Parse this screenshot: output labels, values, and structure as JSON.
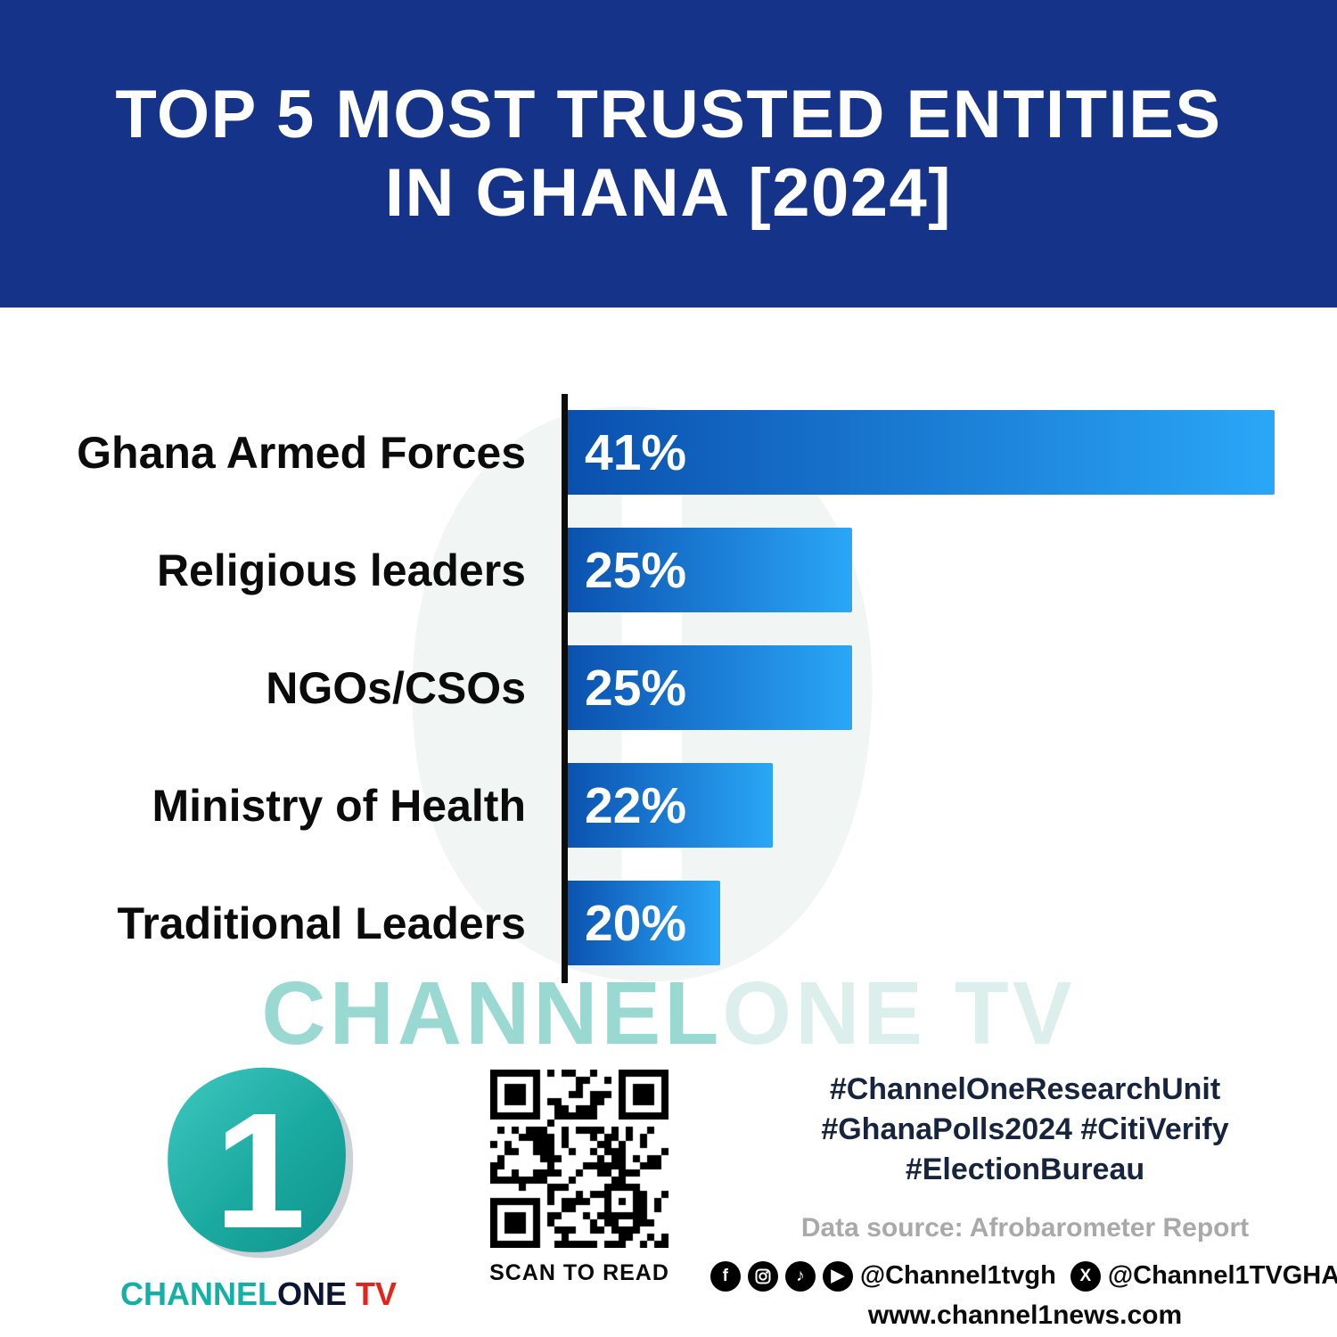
{
  "header": {
    "title_line1": "TOP 5 MOST TRUSTED ENTITIES",
    "title_line2": "IN GHANA [2024]"
  },
  "chart_data": {
    "type": "bar",
    "orientation": "horizontal",
    "title": "Top 5 most trusted entities in Ghana [2024]",
    "categories": [
      "Ghana Armed Forces",
      "Religious leaders",
      "NGOs/CSOs",
      "Ministry of Health",
      "Traditional Leaders"
    ],
    "values": [
      41,
      25,
      25,
      22,
      20
    ],
    "value_labels": [
      "41%",
      "25%",
      "25%",
      "22%",
      "20%"
    ],
    "xlabel": "",
    "ylabel": "",
    "xlim": [
      14,
      41
    ],
    "grid": false,
    "legend": false,
    "bar_color_start": "#0a4fae",
    "bar_color_end": "#2aa7f8"
  },
  "watermark": {
    "part1": "CHANNEL",
    "part2": "ONE TV"
  },
  "footer": {
    "logo": {
      "wordmark_channel": "CHANNEL",
      "wordmark_one": "ONE",
      "wordmark_tv": " TV",
      "logo_number": "1"
    },
    "qr_caption": "SCAN TO READ",
    "hashtags_line1": "#ChannelOneResearchUnit",
    "hashtags_line2": "#GhanaPolls2024 #CitiVerify",
    "hashtags_line3": "#ElectionBureau",
    "data_source": "Data source: Afrobarometer Report",
    "social_handle1": "@Channel1tvgh",
    "social_handle2": "@Channel1TVGHA",
    "website": "www.channel1news.com",
    "social_icons": [
      "facebook-icon",
      "instagram-icon",
      "tiktok-icon",
      "youtube-icon",
      "x-icon"
    ]
  },
  "colors": {
    "header_bg": "#16338a",
    "bar_gradient_start": "#0a4fae",
    "bar_gradient_end": "#2aa7f8",
    "watermark_teal": "#80d0c7",
    "logo_teal": "#14b0a6",
    "logo_tv_red": "#e0251d"
  }
}
